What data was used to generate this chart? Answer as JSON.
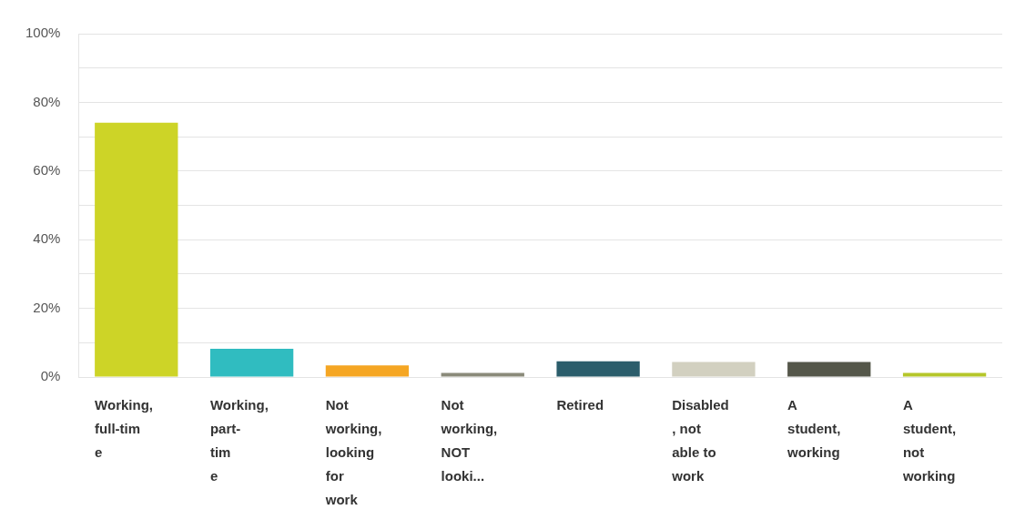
{
  "chart_data": {
    "type": "bar",
    "categories": [
      "Working,\nfull-tim\ne",
      "Working,\npart-\ntim\ne",
      "Not\nworking,\nlooking\nfor\nwork",
      "Not\nworking,\nNOT\nlooki...",
      "Retired",
      "Disabled\n, not\nable to\nwork",
      "A\nstudent,\nworking",
      "A\nstudent,\nnot\nworking"
    ],
    "values": [
      74.1,
      8.2,
      3.4,
      1.2,
      4.6,
      4.4,
      4.4,
      1.2
    ],
    "colors": [
      "#cdd427",
      "#30bcc0",
      "#f5a623",
      "#8a8a7a",
      "#2b5d6b",
      "#d2d0c0",
      "#55574a",
      "#b5c62a"
    ],
    "ylim": [
      0,
      100
    ],
    "yticks": [
      {
        "value": 0,
        "label": "0%"
      },
      {
        "value": 10,
        "label": null
      },
      {
        "value": 20,
        "label": "20%"
      },
      {
        "value": 30,
        "label": null
      },
      {
        "value": 40,
        "label": "40%"
      },
      {
        "value": 50,
        "label": null
      },
      {
        "value": 60,
        "label": "60%"
      },
      {
        "value": 70,
        "label": null
      },
      {
        "value": 80,
        "label": "80%"
      },
      {
        "value": 90,
        "label": null
      },
      {
        "value": 100,
        "label": "100%"
      }
    ],
    "grid": "y",
    "legend": false
  }
}
